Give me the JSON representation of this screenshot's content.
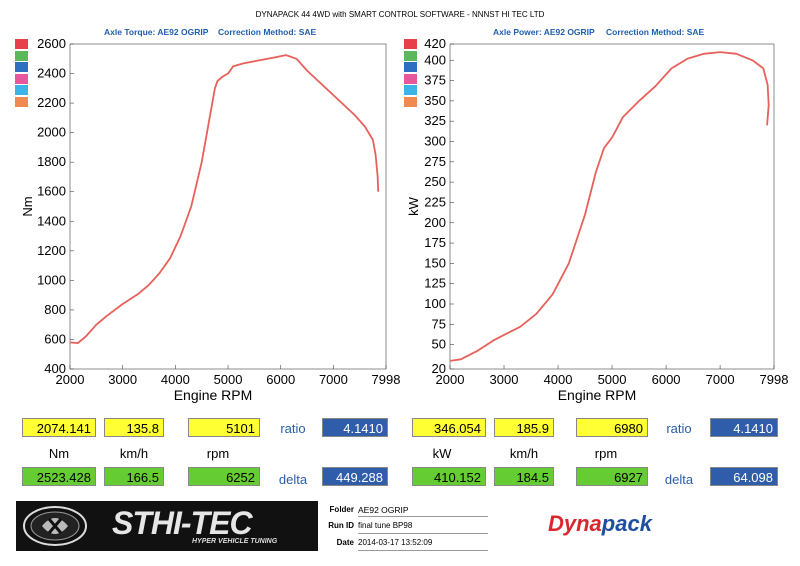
{
  "report_title": "DYNAPACK 44 4WD with SMART CONTROL SOFTWARE - NNNST HI TEC LTD",
  "colors": {
    "curve": "#e8605a",
    "swatches": [
      "#e8404a",
      "#5cb85c",
      "#2f6fc0",
      "#e8569c",
      "#3cb4e8",
      "#f08a50"
    ]
  },
  "torque_chart": {
    "subtitle_left": "Axle Torque: AE92 OGRIP",
    "subtitle_right": "Correction Method: SAE"
  },
  "power_chart": {
    "subtitle_left": "Axle Power: AE92 OGRIP",
    "subtitle_right": "Correction Method: SAE"
  },
  "chart_data": [
    {
      "type": "line",
      "xlabel": "Engine RPM",
      "ylabel": "Nm",
      "xlim": [
        2000,
        7998
      ],
      "ylim": [
        400,
        2600
      ],
      "x_ticks": [
        "2000",
        "3000",
        "4000",
        "5000",
        "6000",
        "7000",
        "7998"
      ],
      "y_ticks": [
        "400",
        "600",
        "800",
        "1000",
        "1200",
        "1400",
        "1600",
        "1800",
        "2000",
        "2200",
        "2400",
        "2600"
      ],
      "grid": false,
      "series": [
        {
          "x": [
            2000,
            2150,
            2300,
            2500,
            2700,
            3000,
            3300,
            3500,
            3700,
            3900,
            4100,
            4300,
            4500,
            4650,
            4750,
            4800,
            4900,
            5000,
            5100,
            5300,
            5600,
            5900,
            6100,
            6300,
            6500,
            6800,
            7100,
            7400,
            7600,
            7750,
            7800,
            7840,
            7850
          ],
          "y": [
            580,
            575,
            620,
            700,
            760,
            840,
            910,
            970,
            1050,
            1150,
            1300,
            1500,
            1800,
            2100,
            2300,
            2350,
            2380,
            2400,
            2450,
            2470,
            2490,
            2510,
            2525,
            2500,
            2420,
            2320,
            2220,
            2120,
            2040,
            1950,
            1850,
            1700,
            1600
          ]
        }
      ]
    },
    {
      "type": "line",
      "xlabel": "Engine RPM",
      "ylabel": "kW",
      "xlim": [
        2000,
        7998
      ],
      "ylim": [
        20,
        420
      ],
      "x_ticks": [
        "2000",
        "3000",
        "4000",
        "5000",
        "6000",
        "7000",
        "7998"
      ],
      "y_ticks": [
        "20",
        "50",
        "75",
        "100",
        "125",
        "150",
        "175",
        "200",
        "225",
        "250",
        "275",
        "300",
        "325",
        "350",
        "375",
        "400",
        "420"
      ],
      "grid": false,
      "series": [
        {
          "x": [
            2000,
            2200,
            2500,
            2800,
            3000,
            3300,
            3600,
            3900,
            4200,
            4500,
            4700,
            4850,
            5000,
            5200,
            5500,
            5800,
            6100,
            6400,
            6700,
            7000,
            7300,
            7600,
            7800,
            7880,
            7900,
            7870
          ],
          "y": [
            30,
            32,
            42,
            55,
            62,
            72,
            88,
            112,
            150,
            210,
            262,
            292,
            305,
            330,
            350,
            368,
            390,
            402,
            408,
            410,
            408,
            400,
            390,
            370,
            345,
            320
          ]
        }
      ]
    }
  ],
  "left_panel": {
    "row1": {
      "v1": "2074.141",
      "v2": "135.8",
      "v3": "5101",
      "label": "ratio",
      "result": "4.1410"
    },
    "units": {
      "u1": "Nm",
      "u2": "km/h",
      "u3": "rpm"
    },
    "row2": {
      "v1": "2523.428",
      "v2": "166.5",
      "v3": "6252",
      "label": "delta",
      "result": "449.288"
    }
  },
  "right_panel": {
    "row1": {
      "v1": "346.054",
      "v2": "185.9",
      "v3": "6980",
      "label": "ratio",
      "result": "4.1410"
    },
    "units": {
      "u1": "kW",
      "u2": "km/h",
      "u3": "rpm"
    },
    "row2": {
      "v1": "410.152",
      "v2": "184.5",
      "v3": "6927",
      "label": "delta",
      "result": "64.098"
    }
  },
  "footer": {
    "logo_text": "STHI-TEC",
    "logo_tagline": "HYPER VEHICLE TUNING",
    "folder_label": "Folder",
    "folder_value": "AE92 OGRIP",
    "run_label": "Run ID",
    "run_value": "final tune BP98",
    "date_label": "Date",
    "date_value": "2014-03-17 13:52:09",
    "brand_prefix": "Dyna",
    "brand_suffix": "pack"
  }
}
